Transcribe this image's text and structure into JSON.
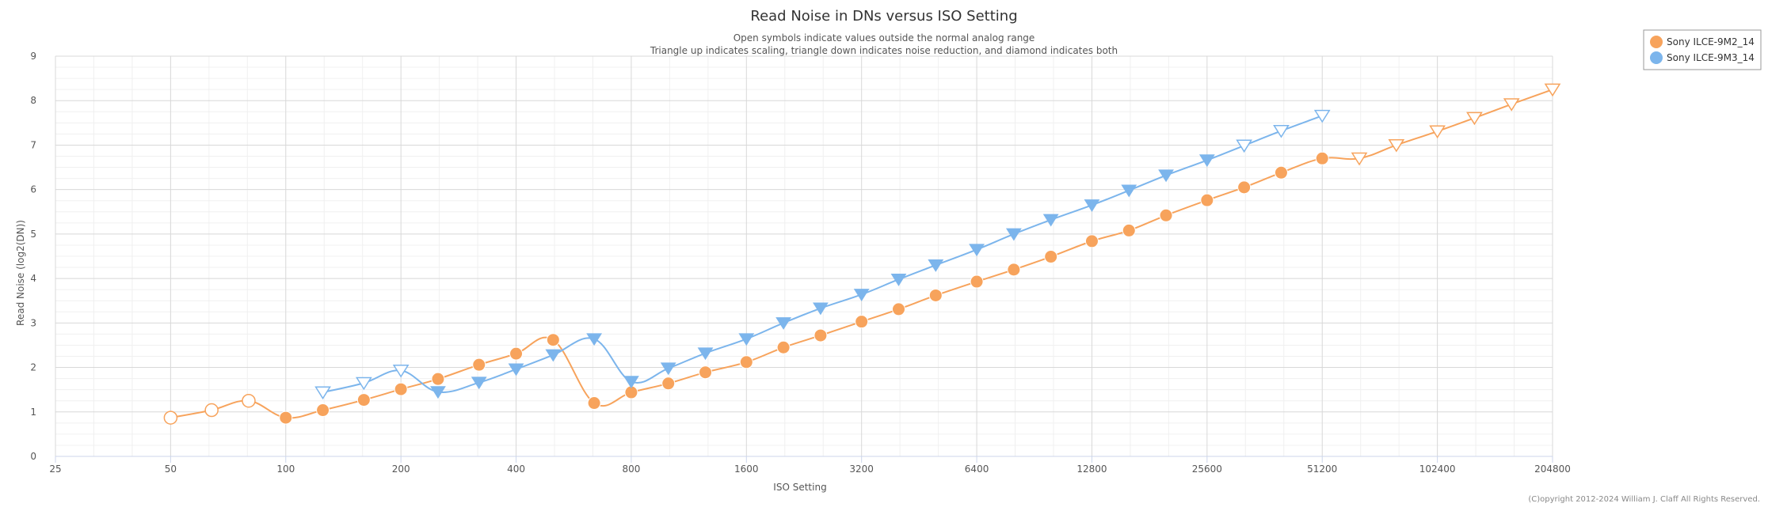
{
  "chart_data": {
    "type": "line",
    "title": "Read Noise in DNs versus ISO Setting",
    "subtitle_lines": [
      "Open symbols indicate values outside the normal analog range",
      "Triangle up indicates scaling, triangle down indicates noise reduction, and diamond indicates both"
    ],
    "xlabel": "ISO Setting",
    "ylabel": "Read Noise (log2(DN))",
    "x_scale": "log2",
    "xlim": [
      25,
      204800
    ],
    "ylim": [
      0,
      9
    ],
    "x_ticks": [
      25,
      50,
      100,
      200,
      400,
      800,
      1600,
      3200,
      6400,
      12800,
      25600,
      51200,
      102400,
      204800
    ],
    "x_tick_labels": [
      "25",
      "50",
      "100",
      "200",
      "400",
      "800",
      "1600",
      "3200",
      "6400",
      "12800",
      "25600",
      "51200",
      "102400",
      "204800"
    ],
    "y_ticks": [
      0,
      1,
      2,
      3,
      4,
      5,
      6,
      7,
      8,
      9
    ],
    "y_tick_labels": [
      "0",
      "1",
      "2",
      "3",
      "4",
      "5",
      "6",
      "7",
      "8",
      "9"
    ],
    "grid": true,
    "legend_position": "top-right",
    "credit": "(C)opyright 2012-2024 William J. Claff All Rights Reserved.",
    "series": [
      {
        "name": "Sony ILCE-9M2_14",
        "color": "#f7a35c",
        "points": [
          {
            "x": 50,
            "y": 0.87,
            "marker": "circle",
            "open": true
          },
          {
            "x": 64,
            "y": 1.04,
            "marker": "circle",
            "open": true
          },
          {
            "x": 80,
            "y": 1.25,
            "marker": "circle",
            "open": true
          },
          {
            "x": 100,
            "y": 0.87,
            "marker": "circle",
            "open": false
          },
          {
            "x": 125,
            "y": 1.04,
            "marker": "circle",
            "open": false
          },
          {
            "x": 160,
            "y": 1.27,
            "marker": "circle",
            "open": false
          },
          {
            "x": 200,
            "y": 1.51,
            "marker": "circle",
            "open": false
          },
          {
            "x": 250,
            "y": 1.74,
            "marker": "circle",
            "open": false
          },
          {
            "x": 320,
            "y": 2.06,
            "marker": "circle",
            "open": false
          },
          {
            "x": 400,
            "y": 2.31,
            "marker": "circle",
            "open": false
          },
          {
            "x": 500,
            "y": 2.62,
            "marker": "circle",
            "open": false
          },
          {
            "x": 640,
            "y": 1.2,
            "marker": "circle",
            "open": false
          },
          {
            "x": 800,
            "y": 1.44,
            "marker": "circle",
            "open": false
          },
          {
            "x": 1000,
            "y": 1.64,
            "marker": "circle",
            "open": false
          },
          {
            "x": 1250,
            "y": 1.89,
            "marker": "circle",
            "open": false
          },
          {
            "x": 1600,
            "y": 2.12,
            "marker": "circle",
            "open": false
          },
          {
            "x": 2000,
            "y": 2.45,
            "marker": "circle",
            "open": false
          },
          {
            "x": 2500,
            "y": 2.72,
            "marker": "circle",
            "open": false
          },
          {
            "x": 3200,
            "y": 3.03,
            "marker": "circle",
            "open": false
          },
          {
            "x": 4000,
            "y": 3.31,
            "marker": "circle",
            "open": false
          },
          {
            "x": 5000,
            "y": 3.62,
            "marker": "circle",
            "open": false
          },
          {
            "x": 6400,
            "y": 3.93,
            "marker": "circle",
            "open": false
          },
          {
            "x": 8000,
            "y": 4.2,
            "marker": "circle",
            "open": false
          },
          {
            "x": 10000,
            "y": 4.49,
            "marker": "circle",
            "open": false
          },
          {
            "x": 12800,
            "y": 4.84,
            "marker": "circle",
            "open": false
          },
          {
            "x": 16000,
            "y": 5.08,
            "marker": "circle",
            "open": false
          },
          {
            "x": 20000,
            "y": 5.42,
            "marker": "circle",
            "open": false
          },
          {
            "x": 25600,
            "y": 5.76,
            "marker": "circle",
            "open": false
          },
          {
            "x": 32000,
            "y": 6.05,
            "marker": "circle",
            "open": false
          },
          {
            "x": 40000,
            "y": 6.38,
            "marker": "circle",
            "open": false
          },
          {
            "x": 51200,
            "y": 6.7,
            "marker": "circle",
            "open": false
          },
          {
            "x": 64000,
            "y": 6.7,
            "marker": "triangle-down",
            "open": true
          },
          {
            "x": 80000,
            "y": 7.0,
            "marker": "triangle-down",
            "open": true
          },
          {
            "x": 102400,
            "y": 7.31,
            "marker": "triangle-down",
            "open": true
          },
          {
            "x": 128000,
            "y": 7.61,
            "marker": "triangle-down",
            "open": true
          },
          {
            "x": 160000,
            "y": 7.92,
            "marker": "triangle-down",
            "open": true
          },
          {
            "x": 204800,
            "y": 8.25,
            "marker": "triangle-down",
            "open": true
          }
        ]
      },
      {
        "name": "Sony ILCE-9M3_14",
        "color": "#7cb5ec",
        "points": [
          {
            "x": 125,
            "y": 1.44,
            "marker": "triangle-down",
            "open": true
          },
          {
            "x": 160,
            "y": 1.65,
            "marker": "triangle-down",
            "open": true
          },
          {
            "x": 200,
            "y": 1.93,
            "marker": "triangle-down",
            "open": true
          },
          {
            "x": 250,
            "y": 1.45,
            "marker": "triangle-down",
            "open": false
          },
          {
            "x": 320,
            "y": 1.66,
            "marker": "triangle-down",
            "open": false
          },
          {
            "x": 400,
            "y": 1.96,
            "marker": "triangle-down",
            "open": false
          },
          {
            "x": 500,
            "y": 2.28,
            "marker": "triangle-down",
            "open": false
          },
          {
            "x": 640,
            "y": 2.64,
            "marker": "triangle-down",
            "open": false
          },
          {
            "x": 800,
            "y": 1.68,
            "marker": "triangle-down",
            "open": false
          },
          {
            "x": 1000,
            "y": 1.98,
            "marker": "triangle-down",
            "open": false
          },
          {
            "x": 1250,
            "y": 2.32,
            "marker": "triangle-down",
            "open": false
          },
          {
            "x": 1600,
            "y": 2.64,
            "marker": "triangle-down",
            "open": false
          },
          {
            "x": 2000,
            "y": 3.0,
            "marker": "triangle-down",
            "open": false
          },
          {
            "x": 2500,
            "y": 3.33,
            "marker": "triangle-down",
            "open": false
          },
          {
            "x": 3200,
            "y": 3.64,
            "marker": "triangle-down",
            "open": false
          },
          {
            "x": 4000,
            "y": 3.98,
            "marker": "triangle-down",
            "open": false
          },
          {
            "x": 5000,
            "y": 4.3,
            "marker": "triangle-down",
            "open": false
          },
          {
            "x": 6400,
            "y": 4.65,
            "marker": "triangle-down",
            "open": false
          },
          {
            "x": 8000,
            "y": 5.0,
            "marker": "triangle-down",
            "open": false
          },
          {
            "x": 10000,
            "y": 5.32,
            "marker": "triangle-down",
            "open": false
          },
          {
            "x": 12800,
            "y": 5.65,
            "marker": "triangle-down",
            "open": false
          },
          {
            "x": 16000,
            "y": 5.98,
            "marker": "triangle-down",
            "open": false
          },
          {
            "x": 20000,
            "y": 6.32,
            "marker": "triangle-down",
            "open": false
          },
          {
            "x": 25600,
            "y": 6.66,
            "marker": "triangle-down",
            "open": false
          },
          {
            "x": 32000,
            "y": 6.99,
            "marker": "triangle-down",
            "open": true
          },
          {
            "x": 40000,
            "y": 7.32,
            "marker": "triangle-down",
            "open": true
          },
          {
            "x": 51200,
            "y": 7.66,
            "marker": "triangle-down",
            "open": true
          }
        ]
      }
    ]
  }
}
